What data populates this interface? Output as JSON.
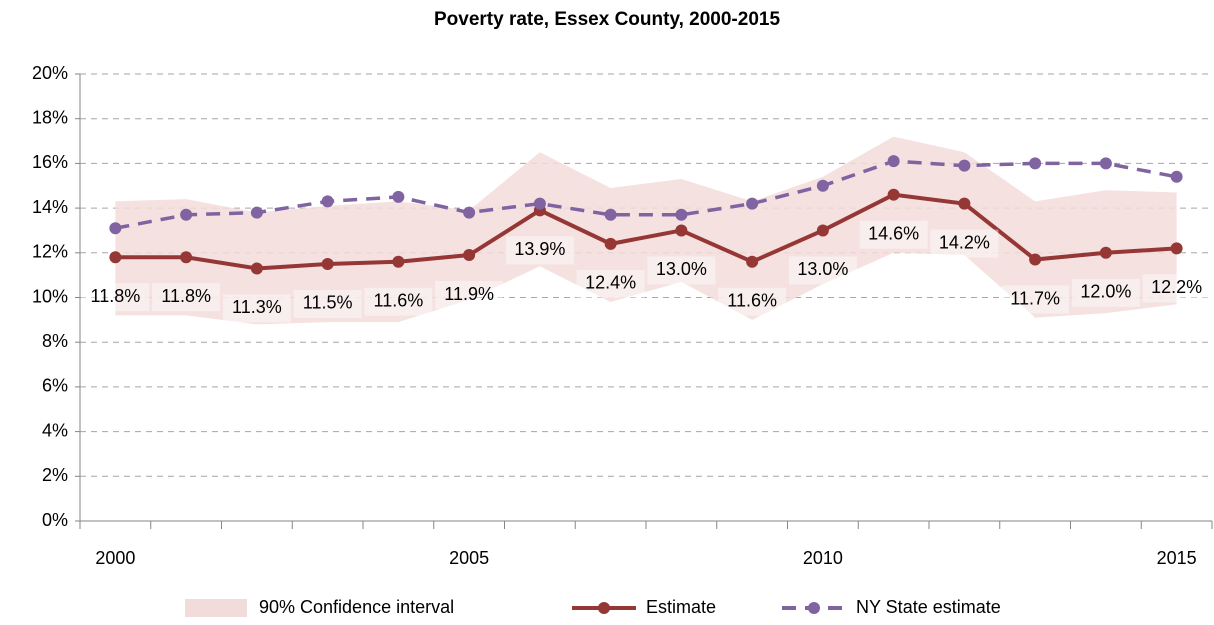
{
  "chart_data": {
    "type": "line",
    "title": "Poverty rate, Essex County, 2000-2015",
    "categories": [
      "2000",
      null,
      null,
      null,
      null,
      "2005",
      null,
      null,
      null,
      null,
      "2010",
      null,
      null,
      null,
      null,
      "2015"
    ],
    "ylim": [
      0,
      20
    ],
    "yticks": [
      {
        "value": 0,
        "label": "0%"
      },
      {
        "value": 2,
        "label": "2%"
      },
      {
        "value": 4,
        "label": "4%"
      },
      {
        "value": 6,
        "label": "6%"
      },
      {
        "value": 8,
        "label": "8%"
      },
      {
        "value": 10,
        "label": "10%"
      },
      {
        "value": 12,
        "label": "12%"
      },
      {
        "value": 14,
        "label": "14%"
      },
      {
        "value": 16,
        "label": "16%"
      },
      {
        "value": 18,
        "label": "18%"
      },
      {
        "value": 20,
        "label": "20%"
      }
    ],
    "grid": true,
    "legend": "bottom",
    "series": [
      {
        "name": "90% Confidence interval",
        "color": "#f2dcdb",
        "upper": [
          14.3,
          14.4,
          13.8,
          14.1,
          14.3,
          13.9,
          16.5,
          14.9,
          15.3,
          14.3,
          15.4,
          17.2,
          16.5,
          14.3,
          14.8,
          14.7
        ],
        "lower": [
          9.2,
          9.2,
          8.8,
          8.9,
          8.9,
          9.9,
          11.4,
          9.8,
          10.7,
          9.0,
          10.6,
          12.0,
          11.9,
          9.1,
          9.3,
          9.7
        ]
      },
      {
        "name": "Estimate",
        "color": "#953735",
        "values": [
          11.8,
          11.8,
          11.3,
          11.5,
          11.6,
          11.9,
          13.9,
          12.4,
          13.0,
          11.6,
          13.0,
          14.6,
          14.2,
          11.7,
          12.0,
          12.2
        ],
        "value_labels": [
          "11.8%",
          "11.8%",
          "11.3%",
          "11.5%",
          "11.6%",
          "11.9%",
          "13.9%",
          "12.4%",
          "13.0%",
          "11.6%",
          "13.0%",
          "14.6%",
          "14.2%",
          "11.7%",
          "12.0%",
          "12.2%"
        ]
      },
      {
        "name": "NY State estimate",
        "color": "#8064a2",
        "dashed": true,
        "values": [
          13.1,
          13.7,
          13.8,
          14.3,
          14.5,
          13.8,
          14.2,
          13.7,
          13.7,
          14.2,
          15.0,
          16.1,
          15.9,
          16.0,
          16.0,
          15.4
        ]
      }
    ]
  }
}
